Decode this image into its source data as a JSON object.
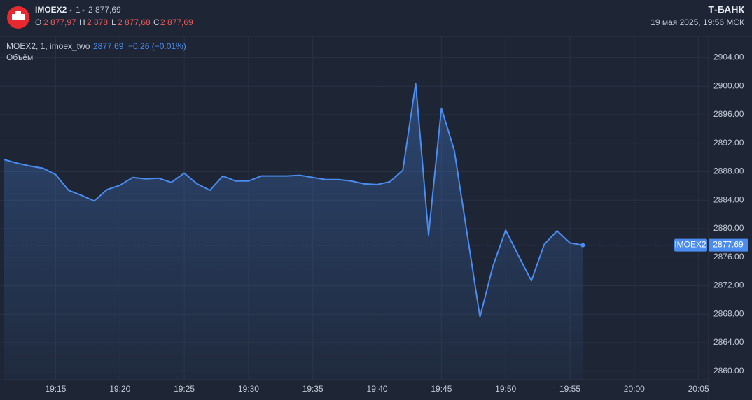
{
  "header": {
    "symbol": "IMOEX2",
    "interval": "1",
    "price": "2 877,69",
    "ohlc": [
      {
        "key": "O",
        "value": "2 877,97"
      },
      {
        "key": "H",
        "value": "2 878"
      },
      {
        "key": "L",
        "value": "2 877,68"
      },
      {
        "key": "C",
        "value": "2 877,69"
      }
    ],
    "brand": "Т‑БАНК",
    "datetime": "19 мая 2025, 19:56 МСК",
    "legend": "MOEX2, 1, imoex_two",
    "change": "−0.26 (−0.01%)",
    "volume": "Объём"
  },
  "chart_data": {
    "type": "line",
    "x": [
      "19:11",
      "19:12",
      "19:13",
      "19:14",
      "19:15",
      "19:16",
      "19:17",
      "19:18",
      "19:19",
      "19:20",
      "19:21",
      "19:22",
      "19:23",
      "19:24",
      "19:25",
      "19:26",
      "19:27",
      "19:28",
      "19:29",
      "19:30",
      "19:31",
      "19:32",
      "19:33",
      "19:34",
      "19:35",
      "19:36",
      "19:37",
      "19:38",
      "19:39",
      "19:40",
      "19:41",
      "19:42",
      "19:43",
      "19:44",
      "19:45",
      "19:46",
      "19:47",
      "19:48",
      "19:49",
      "19:50",
      "19:51",
      "19:52",
      "19:53",
      "19:54",
      "19:55",
      "19:56"
    ],
    "series": [
      {
        "name": "IMOEX2",
        "color": "#4a8cf0",
        "values": [
          2889.7,
          2889.2,
          2888.8,
          2888.5,
          2887.6,
          2885.4,
          2884.7,
          2883.9,
          2885.5,
          2886.1,
          2887.2,
          2887.0,
          2887.1,
          2886.5,
          2887.8,
          2886.3,
          2885.4,
          2887.4,
          2886.7,
          2886.7,
          2887.4,
          2887.4,
          2887.4,
          2887.5,
          2887.2,
          2886.9,
          2886.9,
          2886.7,
          2886.3,
          2886.2,
          2886.6,
          2888.2,
          2900.4,
          2879.1,
          2896.9,
          2891.0,
          2879.3,
          2867.6,
          2874.7,
          2879.8,
          2876.2,
          2872.7,
          2877.8,
          2879.7,
          2878.0,
          2877.69
        ]
      }
    ],
    "xlim": [
      "19:11",
      "20:06"
    ],
    "xticks": [
      "19:15",
      "19:20",
      "19:25",
      "19:30",
      "19:35",
      "19:40",
      "19:45",
      "19:50",
      "19:55",
      "20:00",
      "20:05"
    ],
    "ylim": [
      2858.8,
      2907
    ],
    "yticks": [
      {
        "value": 2860,
        "label": "2860.00"
      },
      {
        "value": 2864,
        "label": "2864.00"
      },
      {
        "value": 2868,
        "label": "2868.00"
      },
      {
        "value": 2872,
        "label": "2872.00"
      },
      {
        "value": 2876,
        "label": "2876.00"
      },
      {
        "value": 2880,
        "label": "2880.00"
      },
      {
        "value": 2884,
        "label": "2884.00"
      },
      {
        "value": 2888,
        "label": "2888.00"
      },
      {
        "value": 2892,
        "label": "2892.00"
      },
      {
        "value": 2896,
        "label": "2896.00"
      },
      {
        "value": 2900,
        "label": "2900.00"
      },
      {
        "value": 2904,
        "label": "2904.00"
      }
    ],
    "grid": true
  }
}
